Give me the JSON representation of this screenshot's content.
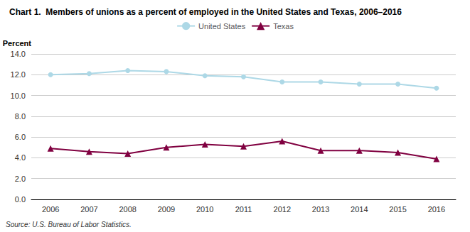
{
  "chart_data": {
    "type": "line",
    "title": "Chart 1.  Members of unions as a percent of employed in the United States and Texas, 2006–2016",
    "ylabel": "Percent",
    "annotations": [
      "Source: U.S. Bureau of Labor Statistics."
    ],
    "categories": [
      "2006",
      "2007",
      "2008",
      "2009",
      "2010",
      "2011",
      "2012",
      "2013",
      "2014",
      "2015",
      "2016"
    ],
    "series": [
      {
        "name": "United States",
        "color": "#add8e6",
        "marker": "circle",
        "values": [
          12.0,
          12.1,
          12.4,
          12.3,
          11.9,
          11.8,
          11.3,
          11.3,
          11.1,
          11.1,
          10.7
        ]
      },
      {
        "name": "Texas",
        "color": "#800040",
        "marker": "triangle",
        "values": [
          4.9,
          4.6,
          4.4,
          5.0,
          5.3,
          5.1,
          5.6,
          4.7,
          4.7,
          4.5,
          3.9
        ]
      }
    ],
    "ylim": [
      0.0,
      14.0
    ],
    "yticks": [
      {
        "value": 0,
        "label": "0.0"
      },
      {
        "value": 2,
        "label": "2.0"
      },
      {
        "value": 4,
        "label": "4.0"
      },
      {
        "value": 6,
        "label": "6.0"
      },
      {
        "value": 8,
        "label": "8.0"
      },
      {
        "value": 10,
        "label": "10.0"
      },
      {
        "value": 12,
        "label": "12.0"
      },
      {
        "value": 14,
        "label": "14.0"
      }
    ],
    "grid": true,
    "legend": "top"
  }
}
